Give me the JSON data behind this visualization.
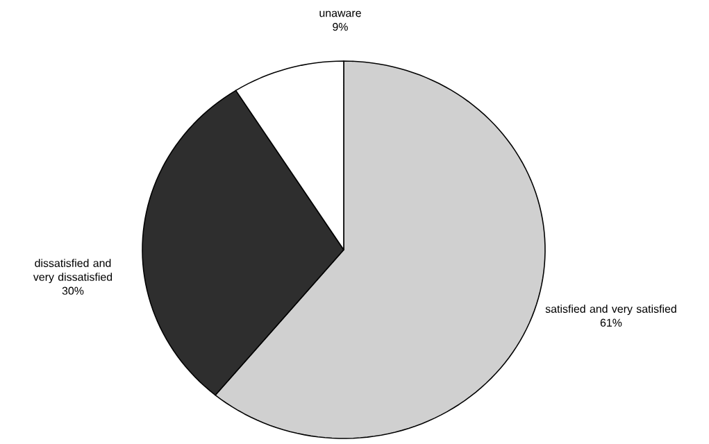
{
  "chart_data": {
    "type": "pie",
    "categories": [
      "satisfied and very satisfied",
      "dissatisfied and very dissatisfied",
      "unaware"
    ],
    "values": [
      61,
      30,
      9
    ],
    "value_labels": [
      "61%",
      "30%",
      "9%"
    ],
    "colors": [
      "#d0d0d0",
      "#2e2e2e",
      "#ffffff"
    ]
  }
}
